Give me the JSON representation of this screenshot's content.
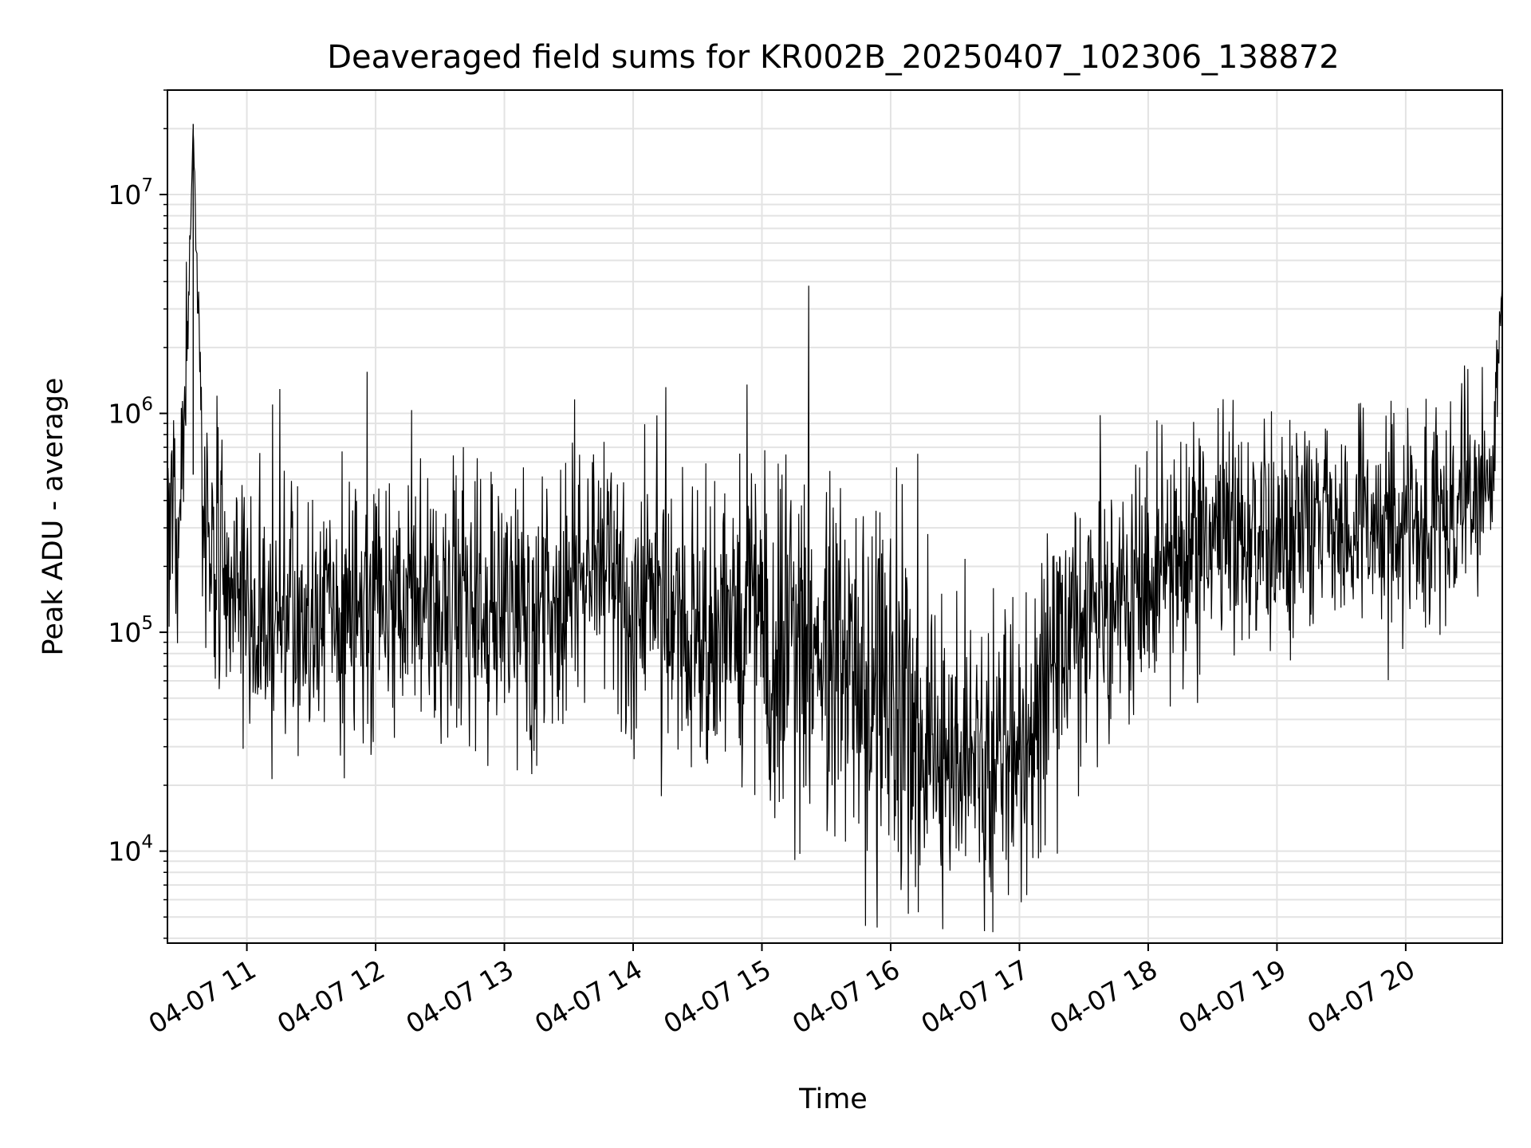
{
  "chart_data": {
    "type": "line",
    "title": "Deaveraged field sums for KR002B_20250407_102306_138872",
    "xlabel": "Time",
    "ylabel": "Peak ADU - average",
    "yscale": "log",
    "ylim": [
      3800,
      30000000
    ],
    "xlim": [
      "2025-04-07 10:23",
      "2025-04-07 20:45"
    ],
    "grid": true,
    "line_color": "#000000",
    "x_tick_labels": [
      "04-07 11",
      "04-07 12",
      "04-07 13",
      "04-07 14",
      "04-07 15",
      "04-07 16",
      "04-07 17",
      "04-07 18",
      "04-07 19",
      "04-07 20"
    ],
    "y_tick_labels": [
      {
        "base": "10",
        "exp": "4",
        "value": 10000
      },
      {
        "base": "10",
        "exp": "5",
        "value": 100000
      },
      {
        "base": "10",
        "exp": "6",
        "value": 1000000
      },
      {
        "base": "10",
        "exp": "7",
        "value": 10000000
      }
    ],
    "series": [
      {
        "values": {
          "x": [
            "2025-04-07 10:23",
            "2025-04-07 10:30",
            "2025-04-07 10:35",
            "2025-04-07 10:40",
            "2025-04-07 10:50",
            "2025-04-07 11:00",
            "2025-04-07 11:15",
            "2025-04-07 11:30",
            "2025-04-07 12:00",
            "2025-04-07 12:30",
            "2025-04-07 13:00",
            "2025-04-07 13:30",
            "2025-04-07 13:45",
            "2025-04-07 14:00",
            "2025-04-07 14:30",
            "2025-04-07 14:45",
            "2025-04-07 15:00",
            "2025-04-07 15:30",
            "2025-04-07 15:45",
            "2025-04-07 16:00",
            "2025-04-07 16:15",
            "2025-04-07 16:30",
            "2025-04-07 16:45",
            "2025-04-07 17:00",
            "2025-04-07 17:15",
            "2025-04-07 17:30",
            "2025-04-07 18:00",
            "2025-04-07 18:30",
            "2025-04-07 19:00",
            "2025-04-07 19:30",
            "2025-04-07 20:00",
            "2025-04-07 20:15",
            "2025-04-07 20:30",
            "2025-04-07 20:40",
            "2025-04-07 20:45"
          ],
          "y": [
            300000,
            400000,
            21000000,
            250000,
            200000,
            120000,
            110000,
            120000,
            120000,
            130000,
            120000,
            140000,
            250000,
            130000,
            120000,
            110000,
            100000,
            90000,
            70000,
            50000,
            30000,
            28000,
            25000,
            30000,
            60000,
            140000,
            180000,
            250000,
            280000,
            300000,
            280000,
            250000,
            500000,
            450000,
            4000000
          ],
          "noise_decades": [
            0.25,
            0.3,
            0,
            0.3,
            0.3,
            0.3,
            0.3,
            0.3,
            0.3,
            0.3,
            0.3,
            0.3,
            0.3,
            0.3,
            0.35,
            0.35,
            0.4,
            0.45,
            0.45,
            0.45,
            0.4,
            0.35,
            0.35,
            0.35,
            0.35,
            0.3,
            0.3,
            0.25,
            0.25,
            0.25,
            0.25,
            0.25,
            0.25,
            0.2,
            0
          ]
        }
      }
    ]
  }
}
